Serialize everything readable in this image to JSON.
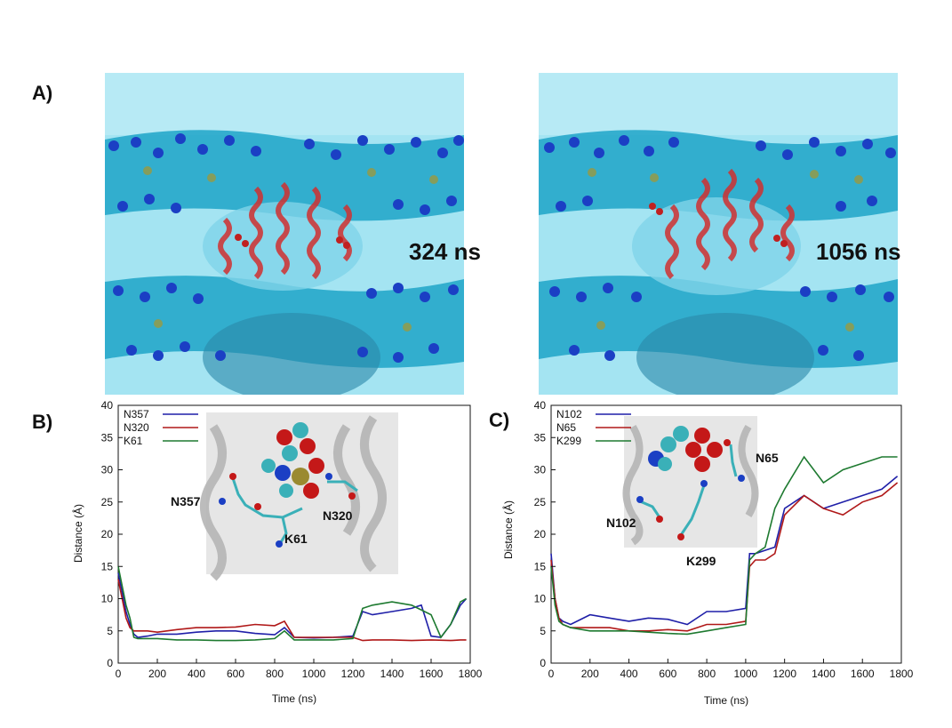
{
  "panels": {
    "a": {
      "letter": "A)",
      "snapshots": [
        {
          "time_label": "324 ns"
        },
        {
          "time_label": "1056 ns"
        }
      ]
    },
    "b": {
      "letter": "B)"
    },
    "c": {
      "letter": "C)"
    }
  },
  "colors": {
    "water": "#8fdff0",
    "membrane": "#1ea4c8",
    "headgroup": "#1b3fc4",
    "helix": "#d03030",
    "blue_series": "#1f1fa8",
    "red_series": "#b01818",
    "green_series": "#1e7a30"
  },
  "chart_data": [
    {
      "type": "line",
      "panel": "B)",
      "xlabel": "Time (ns)",
      "ylabel": "Distance (Å)",
      "xlim": [
        0,
        1800
      ],
      "ylim": [
        0,
        40
      ],
      "xticks": [
        0,
        200,
        400,
        600,
        800,
        1000,
        1200,
        1400,
        1600,
        1800
      ],
      "yticks": [
        0,
        5,
        10,
        15,
        20,
        25,
        30,
        35,
        40
      ],
      "legend_position": "top-left",
      "grid": false,
      "inset_labels": [
        "N357",
        "N320",
        "K61"
      ],
      "series": [
        {
          "name": "N357",
          "color": "#1f1fa8",
          "x": [
            0,
            20,
            40,
            60,
            80,
            100,
            150,
            200,
            300,
            400,
            500,
            600,
            700,
            800,
            850,
            900,
            1000,
            1100,
            1200,
            1250,
            1300,
            1400,
            1500,
            1550,
            1600,
            1650,
            1700,
            1750,
            1780
          ],
          "y": [
            14,
            11,
            8,
            6,
            4.5,
            4,
            4.2,
            4.5,
            4.5,
            4.8,
            5,
            5,
            4.6,
            4.4,
            5.5,
            4,
            3.9,
            4,
            4.2,
            8,
            7.5,
            8,
            8.5,
            9,
            4.2,
            4,
            6,
            9,
            10
          ]
        },
        {
          "name": "N320",
          "color": "#b01818",
          "x": [
            0,
            20,
            40,
            60,
            80,
            100,
            150,
            200,
            300,
            400,
            500,
            600,
            700,
            800,
            850,
            900,
            1000,
            1100,
            1200,
            1250,
            1300,
            1400,
            1500,
            1600,
            1700,
            1750,
            1780
          ],
          "y": [
            13,
            10,
            7,
            5.5,
            5,
            5,
            5,
            4.8,
            5.2,
            5.5,
            5.5,
            5.6,
            6,
            5.8,
            6.5,
            4,
            4,
            4,
            4,
            3.5,
            3.6,
            3.6,
            3.5,
            3.6,
            3.5,
            3.6,
            3.6
          ]
        },
        {
          "name": "K61",
          "color": "#1e7a30",
          "x": [
            0,
            20,
            40,
            60,
            80,
            100,
            150,
            200,
            300,
            400,
            500,
            600,
            700,
            800,
            850,
            900,
            1000,
            1100,
            1200,
            1250,
            1300,
            1400,
            1500,
            1600,
            1650,
            1700,
            1750,
            1780
          ],
          "y": [
            15,
            12,
            9,
            7,
            4,
            3.8,
            3.8,
            3.8,
            3.6,
            3.6,
            3.5,
            3.5,
            3.6,
            3.8,
            5,
            3.6,
            3.6,
            3.6,
            3.8,
            8.5,
            9,
            9.5,
            9,
            7.5,
            4,
            6,
            9.5,
            10
          ]
        }
      ]
    },
    {
      "type": "line",
      "panel": "C)",
      "xlabel": "Time (ns)",
      "ylabel": "Distance (Å)",
      "xlim": [
        0,
        1800
      ],
      "ylim": [
        0,
        40
      ],
      "xticks": [
        0,
        200,
        400,
        600,
        800,
        1000,
        1200,
        1400,
        1600,
        1800
      ],
      "yticks": [
        0,
        5,
        10,
        15,
        20,
        25,
        30,
        35,
        40
      ],
      "legend_position": "top-left",
      "grid": false,
      "inset_labels": [
        "N102",
        "N65",
        "K299"
      ],
      "series": [
        {
          "name": "N102",
          "color": "#1f1fa8",
          "x": [
            0,
            20,
            40,
            60,
            100,
            200,
            300,
            400,
            500,
            600,
            700,
            800,
            900,
            1000,
            1020,
            1050,
            1100,
            1150,
            1200,
            1300,
            1400,
            1500,
            1600,
            1700,
            1780
          ],
          "y": [
            17,
            10,
            7,
            6.5,
            6,
            7.5,
            7,
            6.5,
            7,
            6.8,
            6,
            8,
            8,
            8.5,
            17,
            17,
            17.5,
            18,
            24,
            26,
            24,
            25,
            26,
            27,
            29
          ]
        },
        {
          "name": "N65",
          "color": "#b01818",
          "x": [
            0,
            20,
            40,
            60,
            100,
            200,
            300,
            400,
            500,
            600,
            700,
            800,
            900,
            1000,
            1020,
            1050,
            1100,
            1150,
            1200,
            1300,
            1400,
            1500,
            1600,
            1700,
            1780
          ],
          "y": [
            16,
            10,
            7,
            6,
            5.5,
            5.5,
            5.5,
            5,
            5,
            5.2,
            5,
            6,
            6,
            6.5,
            15,
            16,
            16,
            17,
            23,
            26,
            24,
            23,
            25,
            26,
            28
          ]
        },
        {
          "name": "K299",
          "color": "#1e7a30",
          "x": [
            0,
            20,
            40,
            60,
            100,
            200,
            300,
            400,
            500,
            600,
            700,
            800,
            900,
            1000,
            1020,
            1050,
            1100,
            1150,
            1200,
            1300,
            1400,
            1500,
            1600,
            1700,
            1780
          ],
          "y": [
            15,
            9,
            6.5,
            6,
            5.5,
            5,
            5,
            5,
            4.8,
            4.6,
            4.5,
            5,
            5.5,
            6,
            16,
            17,
            18,
            24,
            27,
            32,
            28,
            30,
            31,
            32,
            32
          ]
        }
      ]
    }
  ]
}
